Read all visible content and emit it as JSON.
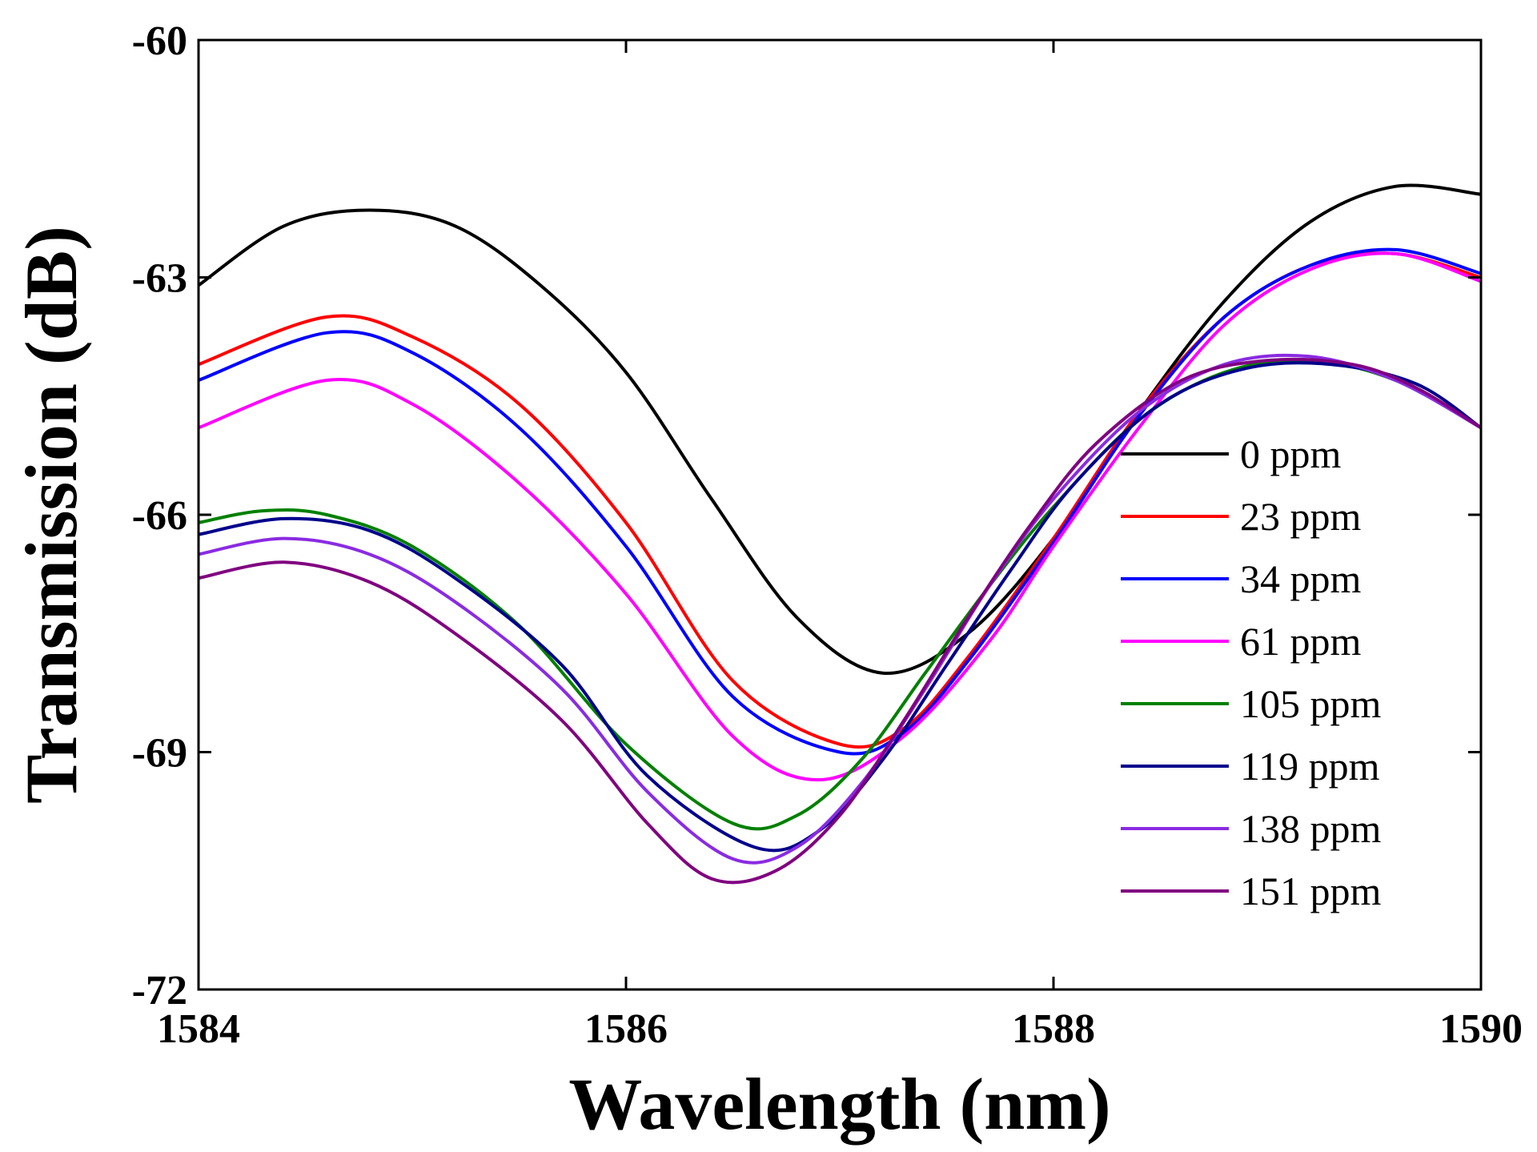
{
  "chart_data": {
    "type": "line",
    "title": "",
    "xlabel": "Wavelength (nm)",
    "ylabel": "Transmission (dB)",
    "xlim": [
      1584,
      1590
    ],
    "ylim": [
      -72,
      -60
    ],
    "xticks": [
      1584,
      1586,
      1588,
      1590
    ],
    "yticks": [
      -72,
      -69,
      -66,
      -63,
      -60
    ],
    "xtick_labels": [
      "1584",
      "1586",
      "1588",
      "1590"
    ],
    "ytick_labels": [
      "-72",
      "-69",
      "-66",
      "-63",
      "-60"
    ],
    "grid": false,
    "legend_position": "right",
    "series": [
      {
        "name": "0 ppm",
        "color": "#000000",
        "x": [
          1584,
          1584.4,
          1584.8,
          1585.2,
          1585.6,
          1586,
          1586.4,
          1586.8,
          1587.2,
          1587.6,
          1588,
          1588.4,
          1588.8,
          1589.2,
          1589.6,
          1590
        ],
        "y": [
          -63.1,
          -62.35,
          -62.15,
          -62.35,
          -63.1,
          -64.2,
          -65.8,
          -67.3,
          -68.0,
          -67.5,
          -66.3,
          -64.7,
          -63.3,
          -62.3,
          -61.85,
          -61.95
        ]
      },
      {
        "name": "23 ppm",
        "color": "#ff0000",
        "x": [
          1584,
          1584.6,
          1585,
          1585.5,
          1586,
          1586.5,
          1587,
          1587.3,
          1587.6,
          1588,
          1588.4,
          1588.8,
          1589.2,
          1589.6,
          1590
        ],
        "y": [
          -64.1,
          -63.5,
          -63.75,
          -64.6,
          -66.1,
          -68.1,
          -68.9,
          -68.7,
          -67.8,
          -66.3,
          -64.7,
          -63.5,
          -62.85,
          -62.7,
          -63.0
        ]
      },
      {
        "name": "34 ppm",
        "color": "#0000ff",
        "x": [
          1584,
          1584.6,
          1585,
          1585.5,
          1586,
          1586.5,
          1587,
          1587.3,
          1587.6,
          1588,
          1588.4,
          1588.8,
          1589.2,
          1589.6,
          1590
        ],
        "y": [
          -64.3,
          -63.7,
          -63.95,
          -64.9,
          -66.4,
          -68.3,
          -69.0,
          -68.75,
          -67.85,
          -66.35,
          -64.75,
          -63.5,
          -62.85,
          -62.65,
          -62.95
        ]
      },
      {
        "name": "61 ppm",
        "color": "#ff00ff",
        "x": [
          1584,
          1584.6,
          1585,
          1585.5,
          1586,
          1586.5,
          1586.9,
          1587.3,
          1587.7,
          1588,
          1588.4,
          1588.8,
          1589.2,
          1589.6,
          1590
        ],
        "y": [
          -64.9,
          -64.3,
          -64.6,
          -65.6,
          -67.0,
          -68.8,
          -69.35,
          -68.8,
          -67.6,
          -66.4,
          -64.9,
          -63.6,
          -62.9,
          -62.7,
          -63.05
        ]
      },
      {
        "name": "105 ppm",
        "color": "#008000",
        "x": [
          1584,
          1584.3,
          1584.6,
          1585,
          1585.5,
          1586,
          1586.5,
          1586.8,
          1587.1,
          1587.4,
          1587.7,
          1588,
          1588.4,
          1588.8,
          1589.2,
          1589.6,
          1590
        ],
        "y": [
          -66.1,
          -65.95,
          -66.0,
          -66.4,
          -67.4,
          -68.9,
          -69.9,
          -69.8,
          -69.1,
          -68.0,
          -66.9,
          -65.9,
          -64.8,
          -64.2,
          -64.05,
          -64.3,
          -64.9
        ]
      },
      {
        "name": "119 ppm",
        "color": "#00008b",
        "x": [
          1584,
          1584.4,
          1584.8,
          1585.2,
          1585.7,
          1586.1,
          1586.6,
          1586.9,
          1587.2,
          1587.5,
          1587.8,
          1588.1,
          1588.5,
          1588.9,
          1589.3,
          1589.7,
          1590
        ],
        "y": [
          -66.25,
          -66.05,
          -66.2,
          -66.8,
          -67.9,
          -69.3,
          -70.2,
          -70.0,
          -69.1,
          -67.9,
          -66.7,
          -65.6,
          -64.6,
          -64.15,
          -64.1,
          -64.35,
          -64.9
        ]
      },
      {
        "name": "138 ppm",
        "color": "#8a2be2",
        "x": [
          1584,
          1584.4,
          1584.8,
          1585.2,
          1585.7,
          1586.1,
          1586.5,
          1586.8,
          1587.1,
          1587.4,
          1587.7,
          1588,
          1588.4,
          1588.8,
          1589.2,
          1589.6,
          1590
        ],
        "y": [
          -66.5,
          -66.3,
          -66.5,
          -67.1,
          -68.2,
          -69.5,
          -70.35,
          -70.2,
          -69.4,
          -68.2,
          -66.9,
          -65.8,
          -64.7,
          -64.1,
          -64.0,
          -64.3,
          -64.9
        ]
      },
      {
        "name": "151 ppm",
        "color": "#800080",
        "x": [
          1584,
          1584.4,
          1584.8,
          1585.2,
          1585.7,
          1586.1,
          1586.4,
          1586.7,
          1587,
          1587.3,
          1587.6,
          1587.9,
          1588.2,
          1588.6,
          1589,
          1589.4,
          1589.7,
          1590
        ],
        "y": [
          -66.8,
          -66.6,
          -66.85,
          -67.5,
          -68.6,
          -69.9,
          -70.6,
          -70.5,
          -69.8,
          -68.6,
          -67.3,
          -66.1,
          -65.1,
          -64.3,
          -64.05,
          -64.1,
          -64.4,
          -64.9
        ]
      }
    ]
  }
}
